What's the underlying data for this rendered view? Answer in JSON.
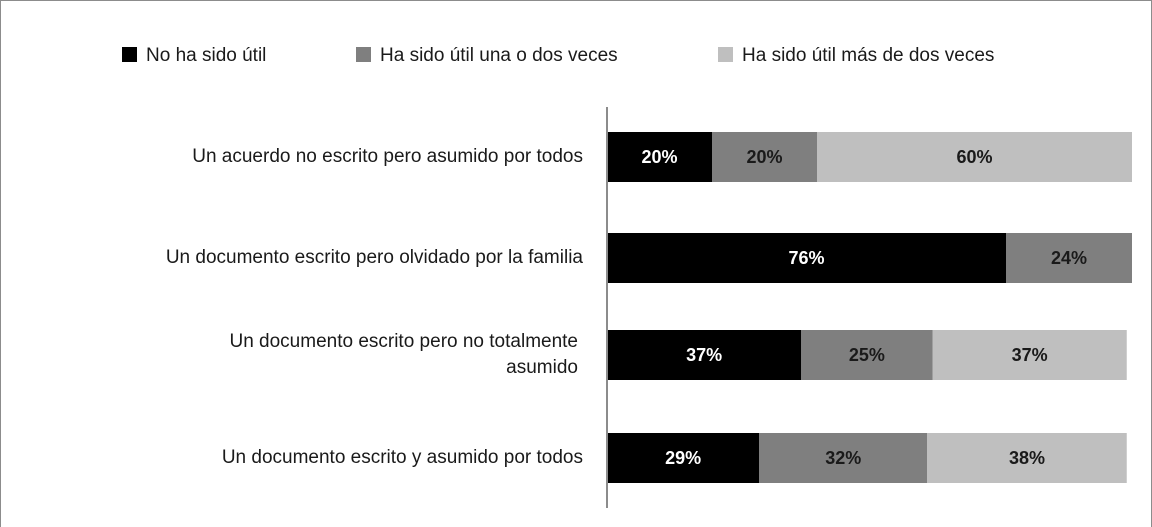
{
  "chart_data": {
    "type": "stacked-barh",
    "categories": [
      "Un acuerdo no escrito pero asumido por todos",
      "Un documento escrito pero olvidado por la familia",
      [
        "Un documento escrito pero no totalmente",
        "asumido"
      ],
      "Un documento escrito y asumido por todos"
    ],
    "series": [
      {
        "name": "No ha sido útil",
        "color": "#000000",
        "label_color": "#ffffff",
        "values": [
          20,
          76,
          37,
          29
        ],
        "value_labels": [
          "20%",
          "76%",
          "37%",
          "29%"
        ]
      },
      {
        "name": "Ha sido útil una o dos veces",
        "color": "#7f7f7f",
        "label_color": "#1a1a1a",
        "values": [
          20,
          24,
          25,
          32
        ],
        "value_labels": [
          "20%",
          "24%",
          "25%",
          "32%"
        ]
      },
      {
        "name": "Ha sido útil más de dos veces",
        "color": "#bfbfbf",
        "label_color": "#1a1a1a",
        "values": [
          60,
          null,
          37,
          38
        ],
        "value_labels": [
          "60%",
          null,
          "37%",
          "38%"
        ]
      }
    ],
    "xlim": [
      0,
      100
    ],
    "legend": "top"
  }
}
